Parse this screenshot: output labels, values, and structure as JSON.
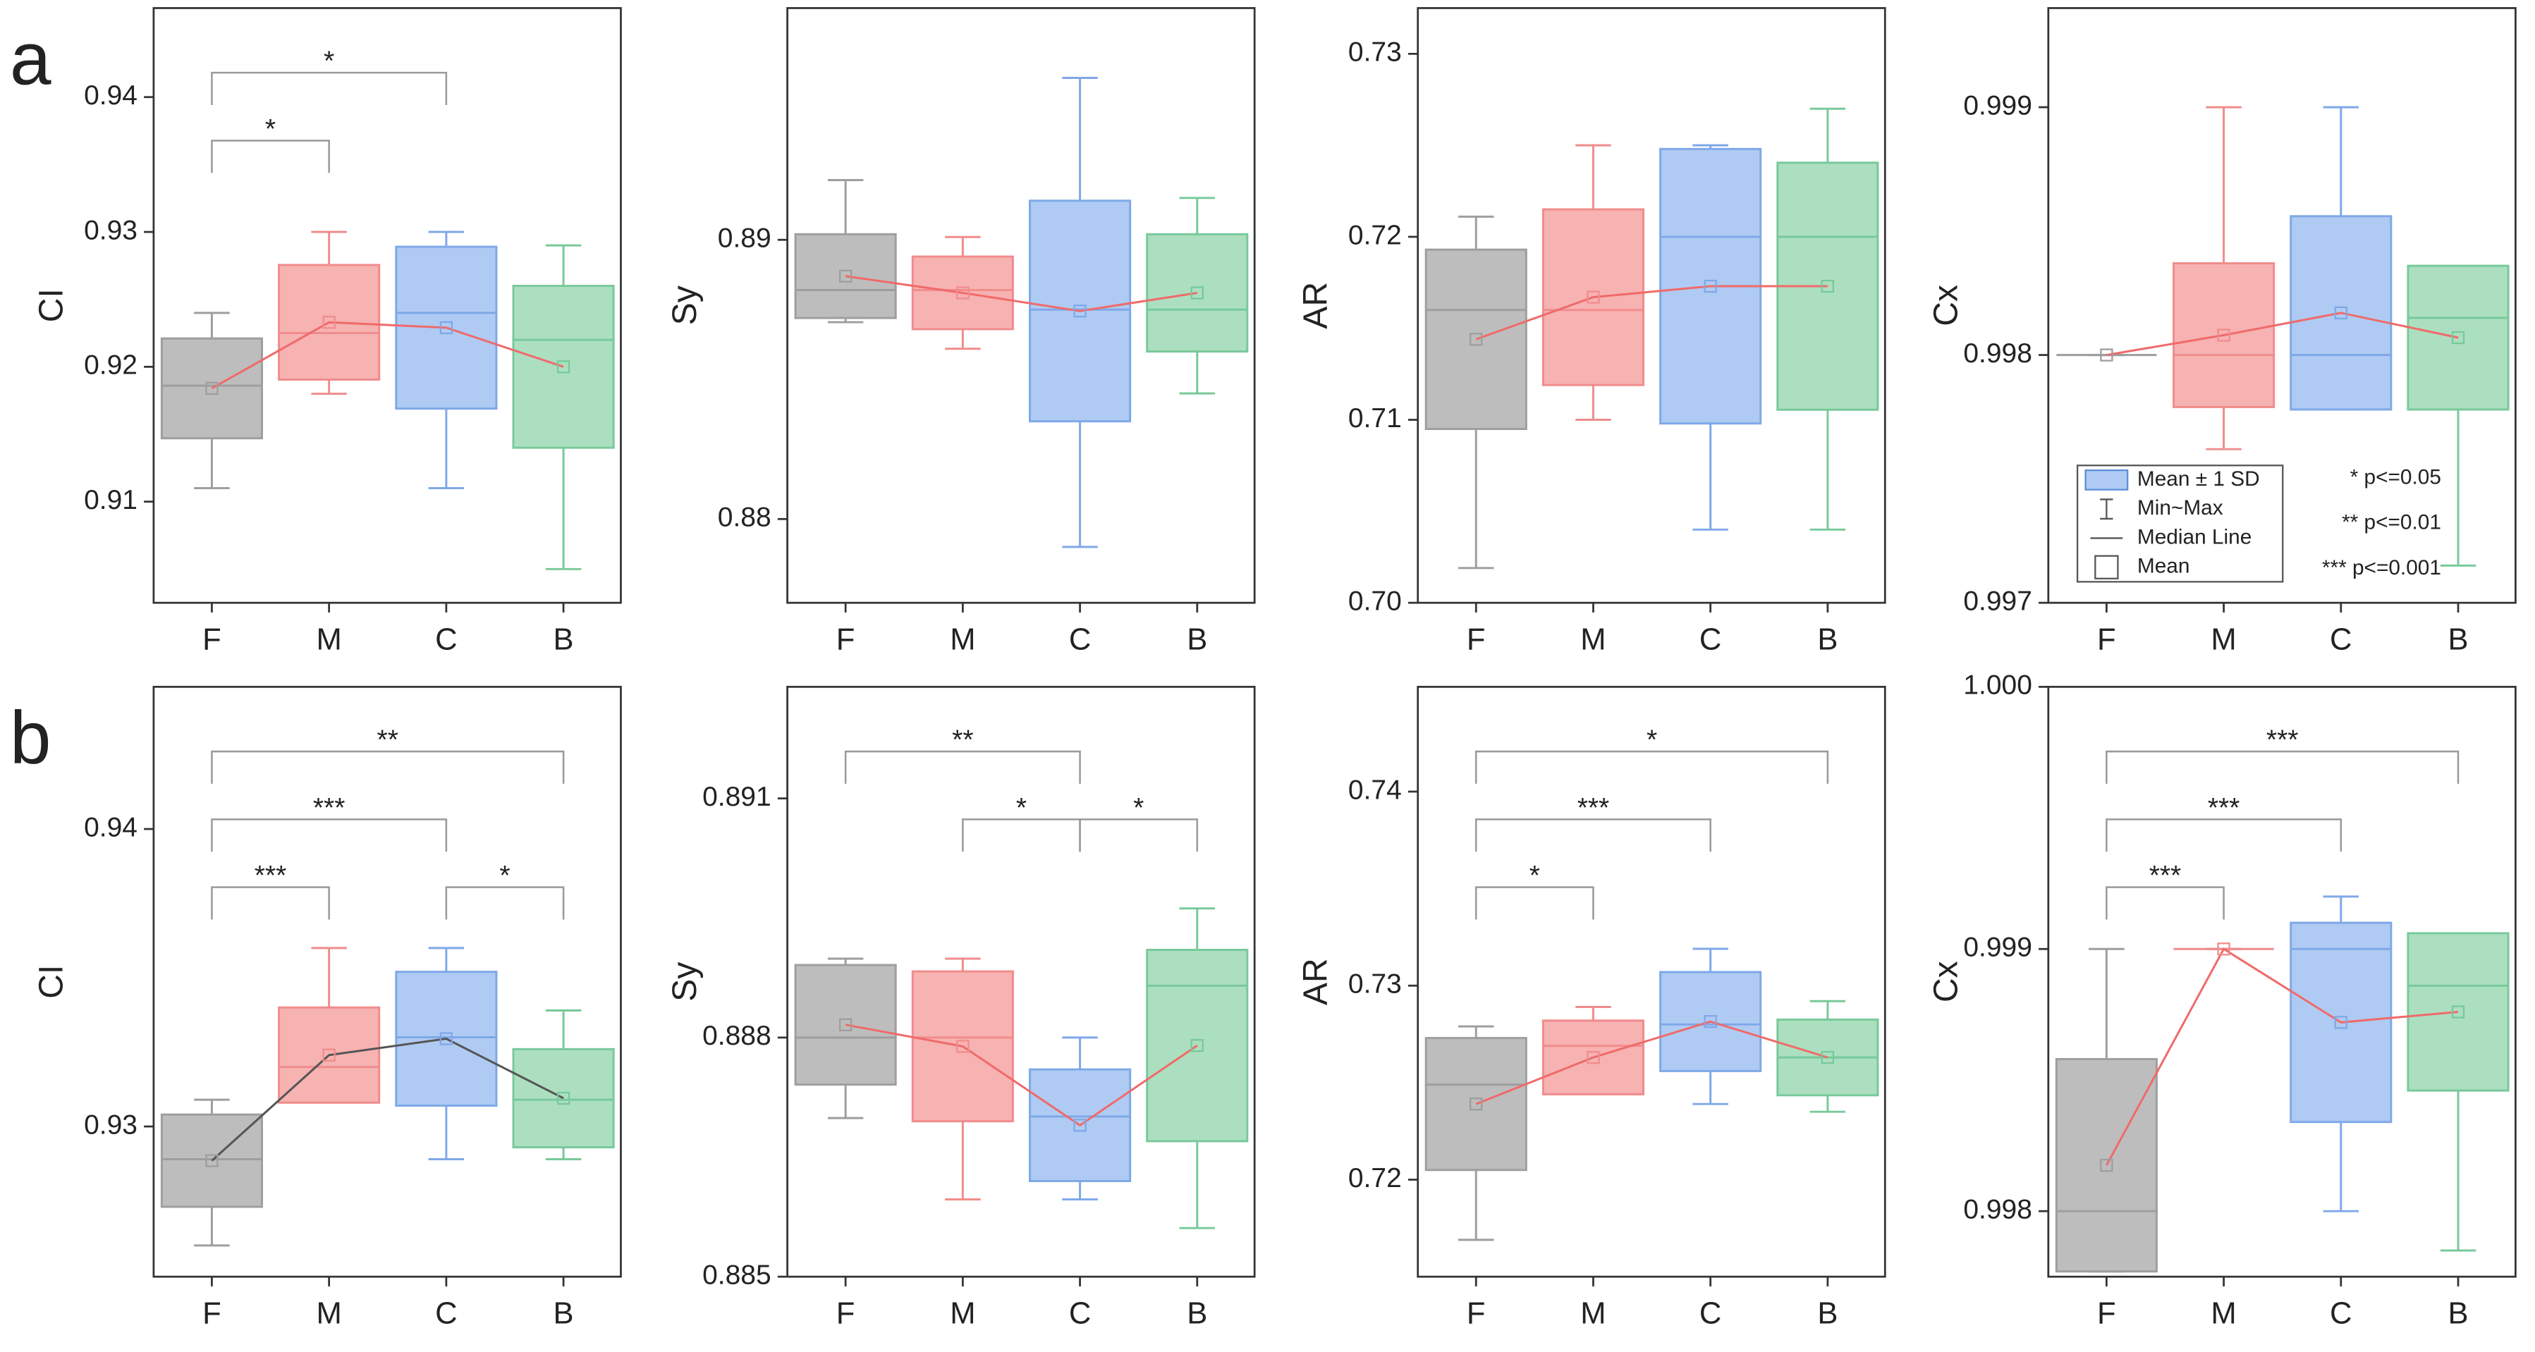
{
  "panel_labels": [
    "a",
    "b"
  ],
  "chart_data": [
    {
      "type": "box",
      "ylabel": "CI",
      "categories": [
        "F",
        "M",
        "C",
        "B"
      ],
      "colors": [
        "#9e9e9e",
        "#f08c8c",
        "#7fa8e8",
        "#78c99a"
      ],
      "fills": [
        "#bdbdbd",
        "#f7b2b2",
        "#afcbf3",
        "#acdfc0"
      ],
      "mean_line_color": "#f06a6a",
      "ylim": [
        0.9025,
        0.9466
      ],
      "yticks": [
        0.91,
        0.92,
        0.93,
        0.94
      ],
      "boxes": [
        {
          "min": 0.911,
          "max": 0.924,
          "mean": 0.9184,
          "sd": 0.0037,
          "median": 0.9186
        },
        {
          "min": 0.918,
          "max": 0.93,
          "mean": 0.9233,
          "sd": 0.00425,
          "median": 0.9225
        },
        {
          "min": 0.911,
          "max": 0.93,
          "mean": 0.9229,
          "sd": 0.006,
          "median": 0.924
        },
        {
          "min": 0.905,
          "max": 0.929,
          "mean": 0.92,
          "sd": 0.006,
          "median": 0.922
        }
      ],
      "brackets": [
        {
          "from": "F",
          "to": "M",
          "label": "*"
        },
        {
          "from": "F",
          "to": "C",
          "label": "*"
        }
      ]
    },
    {
      "type": "box",
      "ylabel": "Sy",
      "categories": [
        "F",
        "M",
        "C",
        "B"
      ],
      "colors": [
        "#9e9e9e",
        "#f08c8c",
        "#7fa8e8",
        "#78c99a"
      ],
      "fills": [
        "#bdbdbd",
        "#f7b2b2",
        "#afcbf3",
        "#acdfc0"
      ],
      "mean_line_color": "#f06a6a",
      "ylim": [
        0.877,
        0.8983
      ],
      "yticks": [
        0.88,
        0.89
      ],
      "boxes": [
        {
          "min": 0.88705,
          "max": 0.89214,
          "mean": 0.8887,
          "sd": 0.0015,
          "median": 0.8882
        },
        {
          "min": 0.8861,
          "max": 0.8901,
          "mean": 0.8881,
          "sd": 0.0013,
          "median": 0.8882
        },
        {
          "min": 0.879,
          "max": 0.8958,
          "mean": 0.88745,
          "sd": 0.00395,
          "median": 0.8875
        },
        {
          "min": 0.8845,
          "max": 0.8915,
          "mean": 0.8881,
          "sd": 0.0021,
          "median": 0.8875
        }
      ],
      "brackets": []
    },
    {
      "type": "box",
      "ylabel": "AR",
      "categories": [
        "F",
        "M",
        "C",
        "B"
      ],
      "colors": [
        "#9e9e9e",
        "#f08c8c",
        "#7fa8e8",
        "#78c99a"
      ],
      "fills": [
        "#bdbdbd",
        "#f7b2b2",
        "#afcbf3",
        "#acdfc0"
      ],
      "mean_line_color": "#f06a6a",
      "ylim": [
        0.7,
        0.7325
      ],
      "yticks": [
        {
          "value": 0.7,
          "label": "0.70"
        },
        0.71,
        0.72,
        0.73
      ],
      "boxes": [
        {
          "min": 0.7019,
          "max": 0.7211,
          "mean": 0.7144,
          "sd": 0.0049,
          "median": 0.716
        },
        {
          "min": 0.71,
          "max": 0.725,
          "mean": 0.7167,
          "sd": 0.0048,
          "median": 0.716
        },
        {
          "min": 0.704,
          "max": 0.725,
          "mean": 0.7173,
          "sd": 0.0075,
          "median": 0.72
        },
        {
          "min": 0.704,
          "max": 0.727,
          "mean": 0.7173,
          "sd": 0.00675,
          "median": 0.72
        }
      ],
      "brackets": []
    },
    {
      "type": "box",
      "ylabel": "Cx",
      "categories": [
        "F",
        "M",
        "C",
        "B"
      ],
      "colors": [
        "#9e9e9e",
        "#f08c8c",
        "#7fa8e8",
        "#78c99a"
      ],
      "fills": [
        "#bdbdbd",
        "#f7b2b2",
        "#afcbf3",
        "#acdfc0"
      ],
      "mean_line_color": "#f06a6a",
      "ylim": [
        0.997,
        0.9994
      ],
      "yticks": [
        0.997,
        0.998,
        0.999
      ],
      "boxes": [
        {
          "min": 0.998,
          "max": 0.998,
          "mean": 0.998,
          "sd": 0,
          "median": 0.998
        },
        {
          "min": 0.99762,
          "max": 0.999,
          "mean": 0.99808,
          "sd": 0.00029,
          "median": 0.998
        },
        {
          "min": 0.99778,
          "max": 0.999,
          "mean": 0.99817,
          "sd": 0.00039,
          "median": 0.998
        },
        {
          "min": 0.99715,
          "max": 0.99835,
          "mean": 0.99807,
          "sd": 0.00029,
          "median": 0.99815
        }
      ],
      "brackets": [],
      "legend": [
        "Mean ± 1 SD",
        "Min~Max",
        "Median Line",
        "Mean"
      ],
      "notes": [
        "* p<=0.05",
        "** p<=0.01",
        "*** p<=0.001"
      ]
    },
    {
      "type": "box",
      "ylabel": "CI",
      "categories": [
        "F",
        "M",
        "C",
        "B"
      ],
      "colors": [
        "#9e9e9e",
        "#f08c8c",
        "#7fa8e8",
        "#78c99a"
      ],
      "fills": [
        "#bdbdbd",
        "#f7b2b2",
        "#afcbf3",
        "#acdfc0"
      ],
      "mean_line_color": "#555555",
      "ylim": [
        0.92495,
        0.94478
      ],
      "yticks": [
        0.93,
        0.94
      ],
      "boxes": [
        {
          "min": 0.926,
          "max": 0.9309,
          "mean": 0.92885,
          "sd": 0.00155,
          "median": 0.9289
        },
        {
          "min": 0.9309,
          "max": 0.936,
          "mean": 0.9324,
          "sd": 0.0016,
          "median": 0.932
        },
        {
          "min": 0.9289,
          "max": 0.936,
          "mean": 0.93295,
          "sd": 0.00225,
          "median": 0.933
        },
        {
          "min": 0.9289,
          "max": 0.9339,
          "mean": 0.93095,
          "sd": 0.00165,
          "median": 0.9309
        }
      ],
      "brackets": [
        {
          "from": "F",
          "to": "M",
          "label": "***"
        },
        {
          "from": "C",
          "to": "B",
          "label": "*"
        },
        {
          "from": "F",
          "to": "C",
          "label": "***"
        },
        {
          "from": "F",
          "to": "B",
          "label": "**"
        }
      ]
    },
    {
      "type": "box",
      "ylabel": "Sy",
      "categories": [
        "F",
        "M",
        "C",
        "B"
      ],
      "colors": [
        "#9e9e9e",
        "#f08c8c",
        "#7fa8e8",
        "#78c99a"
      ],
      "fills": [
        "#bdbdbd",
        "#f7b2b2",
        "#afcbf3",
        "#acdfc0"
      ],
      "mean_line_color": "#f06a6a",
      "ylim": [
        0.885,
        0.8924
      ],
      "yticks": [
        0.885,
        0.888,
        0.891
      ],
      "boxes": [
        {
          "min": 0.88699,
          "max": 0.88899,
          "mean": 0.88816,
          "sd": 0.00075,
          "median": 0.888
        },
        {
          "min": 0.88597,
          "max": 0.88899,
          "mean": 0.88789,
          "sd": 0.00094,
          "median": 0.888
        },
        {
          "min": 0.88597,
          "max": 0.888,
          "mean": 0.8869,
          "sd": 0.0007,
          "median": 0.88701
        },
        {
          "min": 0.88561,
          "max": 0.88962,
          "mean": 0.8879,
          "sd": 0.0012,
          "median": 0.88865
        }
      ],
      "brackets": [
        {
          "from": "M",
          "to": "C",
          "label": "*"
        },
        {
          "from": "C",
          "to": "B",
          "label": "*"
        },
        {
          "from": "F",
          "to": "C",
          "label": "**"
        }
      ]
    },
    {
      "type": "box",
      "ylabel": "AR",
      "categories": [
        "F",
        "M",
        "C",
        "B"
      ],
      "colors": [
        "#9e9e9e",
        "#f08c8c",
        "#7fa8e8",
        "#78c99a"
      ],
      "fills": [
        "#bdbdbd",
        "#f7b2b2",
        "#afcbf3",
        "#acdfc0"
      ],
      "mean_line_color": "#f06a6a",
      "ylim": [
        0.715,
        0.7454
      ],
      "yticks": [
        0.72,
        0.73,
        0.74
      ],
      "boxes": [
        {
          "min": 0.7169,
          "max": 0.7279,
          "mean": 0.7239,
          "sd": 0.0034,
          "median": 0.7249
        },
        {
          "min": 0.7253,
          "max": 0.7289,
          "mean": 0.7263,
          "sd": 0.0019,
          "median": 0.7269
        },
        {
          "min": 0.7239,
          "max": 0.7319,
          "mean": 0.72815,
          "sd": 0.00255,
          "median": 0.728
        },
        {
          "min": 0.7235,
          "max": 0.7292,
          "mean": 0.7263,
          "sd": 0.00195,
          "median": 0.7263
        }
      ],
      "brackets": [
        {
          "from": "F",
          "to": "M",
          "label": "*"
        },
        {
          "from": "F",
          "to": "C",
          "label": "***"
        },
        {
          "from": "F",
          "to": "B",
          "label": "*"
        }
      ]
    },
    {
      "type": "box",
      "ylabel": "Cx",
      "categories": [
        "F",
        "M",
        "C",
        "B"
      ],
      "colors": [
        "#9e9e9e",
        "#f08c8c",
        "#7fa8e8",
        "#78c99a"
      ],
      "fills": [
        "#bdbdbd",
        "#f7b2b2",
        "#afcbf3",
        "#acdfc0"
      ],
      "mean_line_color": "#f06a6a",
      "ylim": [
        0.99775,
        1.0
      ],
      "yticks": [
        0.998,
        0.999,
        {
          "value": 1,
          "label": "1.000"
        }
      ],
      "boxes": [
        {
          "min": 0.99777,
          "max": 0.999,
          "mean": 0.998175,
          "sd": 0.000405,
          "median": 0.998
        },
        {
          "min": 0.999,
          "max": 0.999,
          "mean": 0.999,
          "sd": 0,
          "median": 0.999
        },
        {
          "min": 0.998,
          "max": 0.9992,
          "mean": 0.99872,
          "sd": 0.00038,
          "median": 0.999
        },
        {
          "min": 0.99785,
          "max": 0.99906,
          "mean": 0.99876,
          "sd": 0.0003,
          "median": 0.99886
        }
      ],
      "brackets": [
        {
          "from": "F",
          "to": "M",
          "label": "***"
        },
        {
          "from": "F",
          "to": "C",
          "label": "***"
        },
        {
          "from": "F",
          "to": "B",
          "label": "***"
        }
      ]
    }
  ]
}
